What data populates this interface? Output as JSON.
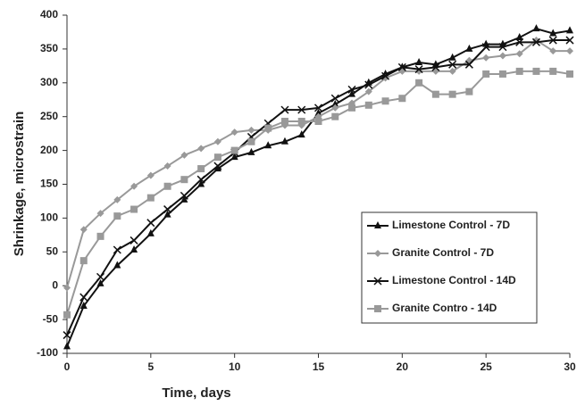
{
  "chart_data": {
    "type": "line",
    "x_label": "Time, days",
    "y_label": "Shrinkage, microstrain",
    "x": [
      0,
      1,
      2,
      3,
      4,
      5,
      6,
      7,
      8,
      9,
      10,
      11,
      12,
      13,
      14,
      15,
      16,
      17,
      18,
      19,
      20,
      21,
      22,
      23,
      24,
      25,
      26,
      27,
      28,
      29,
      30
    ],
    "series": [
      {
        "name": "Limestone Control - 7D",
        "color": "#111111",
        "marker": "triangle",
        "values": [
          -90,
          -30,
          3,
          30,
          53,
          77,
          105,
          127,
          150,
          173,
          190,
          197,
          207,
          213,
          223,
          255,
          268,
          283,
          300,
          313,
          323,
          330,
          327,
          337,
          350,
          357,
          357,
          367,
          380,
          373,
          377
        ]
      },
      {
        "name": "Granite Control - 7D",
        "color": "#999999",
        "marker": "diamond",
        "values": [
          -3,
          83,
          107,
          127,
          147,
          163,
          177,
          193,
          203,
          213,
          227,
          230,
          230,
          237,
          237,
          250,
          263,
          270,
          287,
          307,
          317,
          317,
          317,
          317,
          333,
          337,
          340,
          343,
          363,
          347,
          347
        ]
      },
      {
        "name": "Limestone Control - 14D",
        "color": "#111111",
        "marker": "cross",
        "values": [
          -73,
          -17,
          13,
          53,
          67,
          93,
          113,
          133,
          157,
          177,
          197,
          220,
          240,
          260,
          260,
          263,
          277,
          290,
          297,
          310,
          323,
          320,
          323,
          327,
          327,
          353,
          353,
          360,
          360,
          363,
          363
        ]
      },
      {
        "name": "Granite Contro - 14D",
        "color": "#999999",
        "marker": "square",
        "values": [
          -43,
          37,
          73,
          103,
          113,
          130,
          147,
          157,
          173,
          190,
          200,
          213,
          233,
          243,
          243,
          243,
          250,
          263,
          267,
          273,
          277,
          300,
          283,
          283,
          287,
          313,
          313,
          317,
          317,
          317,
          313
        ]
      }
    ],
    "xlim": [
      0,
      30
    ],
    "xticks": [
      0,
      5,
      10,
      15,
      20,
      25,
      30
    ],
    "ylim": [
      -100,
      400
    ],
    "yticks": [
      -100,
      -50,
      0,
      50,
      100,
      150,
      200,
      250,
      300,
      350,
      400
    ],
    "grid": false,
    "legend": "lower right"
  }
}
